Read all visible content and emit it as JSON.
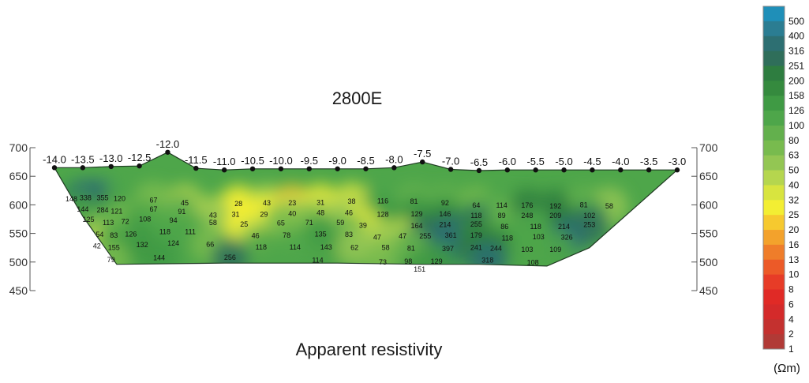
{
  "chart_data": {
    "type": "heatmap",
    "title": "2800E",
    "subtitle": "Apparent resistivity",
    "xticks": [
      "-14.0",
      "-13.5",
      "-13.0",
      "-12.5",
      "-12.0",
      "-11.5",
      "-11.0",
      "-10.5",
      "-10.0",
      "-9.5",
      "-9.0",
      "-8.5",
      "-8.0",
      "-7.5",
      "-7.0",
      "-6.5",
      "-6.0",
      "-5.5",
      "-5.0",
      "-4.5",
      "-4.0",
      "-3.5",
      "-3.0"
    ],
    "xvalues": [
      -14.0,
      -13.5,
      -13.0,
      -12.5,
      -12.0,
      -11.5,
      -11.0,
      -10.5,
      -10.0,
      -9.5,
      -9.0,
      -8.5,
      -8.0,
      -7.5,
      -7.0,
      -6.5,
      -6.0,
      -5.5,
      -5.0,
      -4.5,
      -4.0,
      -3.5,
      -3.0
    ],
    "surface_elevation": [
      665,
      665,
      667,
      668,
      692,
      664,
      661,
      663,
      663,
      663,
      663,
      663,
      665,
      675,
      662,
      660,
      661,
      661,
      661,
      661,
      661,
      661,
      661
    ],
    "yticks": [
      "700",
      "650",
      "600",
      "550",
      "500",
      "450"
    ],
    "yvalues": [
      700,
      650,
      600,
      550,
      500,
      450
    ],
    "ylim": [
      450,
      700
    ],
    "scale_unit": "(Ωm)",
    "scale": [
      {
        "label": "500",
        "color": "#1f8fb8"
      },
      {
        "label": "400",
        "color": "#2b7d92"
      },
      {
        "label": "316",
        "color": "#2d6f72"
      },
      {
        "label": "251",
        "color": "#2f6e5a"
      },
      {
        "label": "200",
        "color": "#2e7d40"
      },
      {
        "label": "158",
        "color": "#358a3e"
      },
      {
        "label": "126",
        "color": "#3f9a44"
      },
      {
        "label": "100",
        "color": "#4ea64a"
      },
      {
        "label": "80",
        "color": "#63b04d"
      },
      {
        "label": "63",
        "color": "#78bb4e"
      },
      {
        "label": "50",
        "color": "#93c653"
      },
      {
        "label": "40",
        "color": "#b5d64e"
      },
      {
        "label": "32",
        "color": "#d8e43f"
      },
      {
        "label": "25",
        "color": "#f3ee33"
      },
      {
        "label": "20",
        "color": "#f6c92f"
      },
      {
        "label": "16",
        "color": "#f3a22c"
      },
      {
        "label": "13",
        "color": "#ef7d2a"
      },
      {
        "label": "10",
        "color": "#ec5a28"
      },
      {
        "label": "8",
        "color": "#e73c27"
      },
      {
        "label": "6",
        "color": "#e02a26"
      },
      {
        "label": "4",
        "color": "#d42a2a"
      },
      {
        "label": "2",
        "color": "#c4312f"
      },
      {
        "label": "1",
        "color": "#b13a36"
      }
    ],
    "points": [
      {
        "x": -13.7,
        "y": 610,
        "v": "148"
      },
      {
        "x": -13.45,
        "y": 612,
        "v": "338"
      },
      {
        "x": -13.15,
        "y": 612,
        "v": "355"
      },
      {
        "x": -12.85,
        "y": 611,
        "v": "120"
      },
      {
        "x": -12.25,
        "y": 608,
        "v": "67"
      },
      {
        "x": -11.7,
        "y": 603,
        "v": "45"
      },
      {
        "x": -10.75,
        "y": 602,
        "v": "28"
      },
      {
        "x": -10.25,
        "y": 603,
        "v": "43"
      },
      {
        "x": -9.8,
        "y": 603,
        "v": "23"
      },
      {
        "x": -9.3,
        "y": 604,
        "v": "31"
      },
      {
        "x": -8.75,
        "y": 606,
        "v": "38"
      },
      {
        "x": -8.2,
        "y": 607,
        "v": "116"
      },
      {
        "x": -7.65,
        "y": 606,
        "v": "81"
      },
      {
        "x": -7.1,
        "y": 603,
        "v": "92"
      },
      {
        "x": -6.55,
        "y": 599,
        "v": "64"
      },
      {
        "x": -6.1,
        "y": 599,
        "v": "114"
      },
      {
        "x": -5.65,
        "y": 599,
        "v": "176"
      },
      {
        "x": -5.15,
        "y": 598,
        "v": "192"
      },
      {
        "x": -4.65,
        "y": 600,
        "v": "81"
      },
      {
        "x": -4.2,
        "y": 598,
        "v": "58"
      },
      {
        "x": -13.5,
        "y": 592,
        "v": "144"
      },
      {
        "x": -13.15,
        "y": 591,
        "v": "284"
      },
      {
        "x": -12.9,
        "y": 589,
        "v": "121"
      },
      {
        "x": -12.25,
        "y": 592,
        "v": "67"
      },
      {
        "x": -11.75,
        "y": 588,
        "v": "91"
      },
      {
        "x": -10.8,
        "y": 583,
        "v": "31"
      },
      {
        "x": -10.3,
        "y": 583,
        "v": "29"
      },
      {
        "x": -9.8,
        "y": 585,
        "v": "40"
      },
      {
        "x": -9.3,
        "y": 586,
        "v": "48"
      },
      {
        "x": -8.8,
        "y": 586,
        "v": "46"
      },
      {
        "x": -8.2,
        "y": 583,
        "v": "128"
      },
      {
        "x": -7.6,
        "y": 584,
        "v": "129"
      },
      {
        "x": -7.1,
        "y": 584,
        "v": "146"
      },
      {
        "x": -6.55,
        "y": 581,
        "v": "118"
      },
      {
        "x": -6.1,
        "y": 581,
        "v": "89"
      },
      {
        "x": -5.65,
        "y": 581,
        "v": "248"
      },
      {
        "x": -5.15,
        "y": 581,
        "v": "209"
      },
      {
        "x": -4.55,
        "y": 581,
        "v": "102"
      },
      {
        "x": -11.2,
        "y": 582,
        "v": "43"
      },
      {
        "x": -13.4,
        "y": 574,
        "v": "125"
      },
      {
        "x": -13.05,
        "y": 569,
        "v": "113"
      },
      {
        "x": -12.75,
        "y": 571,
        "v": "72"
      },
      {
        "x": -12.4,
        "y": 575,
        "v": "108"
      },
      {
        "x": -11.9,
        "y": 573,
        "v": "94"
      },
      {
        "x": -11.2,
        "y": 569,
        "v": "58"
      },
      {
        "x": -10.65,
        "y": 566,
        "v": "25"
      },
      {
        "x": -10.0,
        "y": 568,
        "v": "65"
      },
      {
        "x": -9.5,
        "y": 569,
        "v": "71"
      },
      {
        "x": -8.95,
        "y": 569,
        "v": "59"
      },
      {
        "x": -8.55,
        "y": 564,
        "v": "39"
      },
      {
        "x": -7.6,
        "y": 563,
        "v": "164"
      },
      {
        "x": -7.1,
        "y": 565,
        "v": "214"
      },
      {
        "x": -6.55,
        "y": 566,
        "v": "255"
      },
      {
        "x": -6.05,
        "y": 562,
        "v": "86"
      },
      {
        "x": -5.5,
        "y": 562,
        "v": "118"
      },
      {
        "x": -5.0,
        "y": 562,
        "v": "214"
      },
      {
        "x": -4.55,
        "y": 565,
        "v": "253"
      },
      {
        "x": -12.65,
        "y": 549,
        "v": "126"
      },
      {
        "x": -12.05,
        "y": 553,
        "v": "118"
      },
      {
        "x": -11.6,
        "y": 553,
        "v": "111"
      },
      {
        "x": -10.45,
        "y": 546,
        "v": "46"
      },
      {
        "x": -9.9,
        "y": 547,
        "v": "78"
      },
      {
        "x": -9.3,
        "y": 549,
        "v": "135"
      },
      {
        "x": -8.8,
        "y": 548,
        "v": "83"
      },
      {
        "x": -8.3,
        "y": 543,
        "v": "47"
      },
      {
        "x": -7.85,
        "y": 545,
        "v": "47"
      },
      {
        "x": -7.45,
        "y": 545,
        "v": "255"
      },
      {
        "x": -7.0,
        "y": 547,
        "v": "361"
      },
      {
        "x": -6.55,
        "y": 547,
        "v": "179"
      },
      {
        "x": -6.0,
        "y": 542,
        "v": "118"
      },
      {
        "x": -5.45,
        "y": 544,
        "v": "103"
      },
      {
        "x": -4.95,
        "y": 543,
        "v": "326"
      },
      {
        "x": -13.2,
        "y": 548,
        "v": "54"
      },
      {
        "x": -12.95,
        "y": 547,
        "v": "83"
      },
      {
        "x": -12.45,
        "y": 530,
        "v": "132"
      },
      {
        "x": -11.9,
        "y": 533,
        "v": "124"
      },
      {
        "x": -11.25,
        "y": 531,
        "v": "66"
      },
      {
        "x": -10.35,
        "y": 526,
        "v": "118"
      },
      {
        "x": -9.75,
        "y": 526,
        "v": "114"
      },
      {
        "x": -9.2,
        "y": 526,
        "v": "143"
      },
      {
        "x": -8.7,
        "y": 525,
        "v": "62"
      },
      {
        "x": -8.15,
        "y": 525,
        "v": "58"
      },
      {
        "x": -7.7,
        "y": 524,
        "v": "81"
      },
      {
        "x": -7.05,
        "y": 523,
        "v": "397"
      },
      {
        "x": -6.55,
        "y": 525,
        "v": "241"
      },
      {
        "x": -6.2,
        "y": 524,
        "v": "244"
      },
      {
        "x": -5.65,
        "y": 522,
        "v": "103"
      },
      {
        "x": -5.15,
        "y": 522,
        "v": "109"
      },
      {
        "x": -13.25,
        "y": 528,
        "v": "42"
      },
      {
        "x": -12.95,
        "y": 525,
        "v": "155"
      },
      {
        "x": -13.0,
        "y": 504,
        "v": "79"
      },
      {
        "x": -12.15,
        "y": 507,
        "v": "144"
      },
      {
        "x": -10.9,
        "y": 508,
        "v": "256"
      },
      {
        "x": -9.35,
        "y": 503,
        "v": "114"
      },
      {
        "x": -8.2,
        "y": 500,
        "v": "73"
      },
      {
        "x": -7.75,
        "y": 501,
        "v": "98"
      },
      {
        "x": -7.25,
        "y": 501,
        "v": "129"
      },
      {
        "x": -6.35,
        "y": 503,
        "v": "318"
      },
      {
        "x": -5.55,
        "y": 499,
        "v": "108"
      },
      {
        "x": -7.55,
        "y": 487,
        "v": "151"
      }
    ]
  }
}
